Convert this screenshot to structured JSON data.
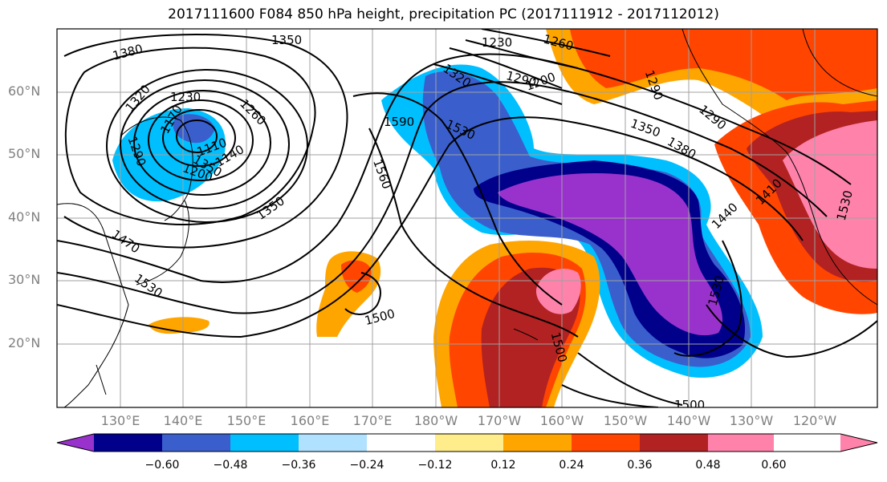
{
  "title": "2017111600 F084 850 hPa height, precipitation PC (2017111912 - 2017112012)",
  "lat_labels": [
    "60°N",
    "50°N",
    "40°N",
    "30°N",
    "20°N"
  ],
  "lon_labels": [
    "130°E",
    "140°E",
    "150°E",
    "160°E",
    "170°E",
    "180°W",
    "170°W",
    "160°W",
    "150°W",
    "140°W",
    "130°W",
    "120°W"
  ],
  "colorbar": {
    "ticks": [
      "−0.60",
      "−0.48",
      "−0.36",
      "−0.24",
      "−0.12",
      "0.12",
      "0.24",
      "0.36",
      "0.48",
      "0.60"
    ],
    "colors": [
      "#9932cc",
      "#00008b",
      "#3a5fcd",
      "#00bfff",
      "#b0e2ff",
      "#ffffff",
      "#ffec8b",
      "#ffa500",
      "#ff4500",
      "#b22222",
      "#ff82ab"
    ]
  },
  "contour_labels": [
    "1380",
    "1350",
    "1230",
    "1260",
    "1320",
    "1290",
    "1170",
    "1200",
    "1230",
    "1260",
    "1290",
    "1320",
    "1350",
    "1110",
    "1140",
    "1200",
    "1290",
    "1590",
    "1530",
    "1350",
    "1380",
    "1290",
    "1560",
    "1350",
    "1440",
    "1410",
    "1470",
    "1530",
    "1500",
    "1530",
    "1500",
    "1500",
    "1530"
  ],
  "colors": {
    "contour": "#000000",
    "grid": "#a0a0a0",
    "coast": "#000000"
  }
}
